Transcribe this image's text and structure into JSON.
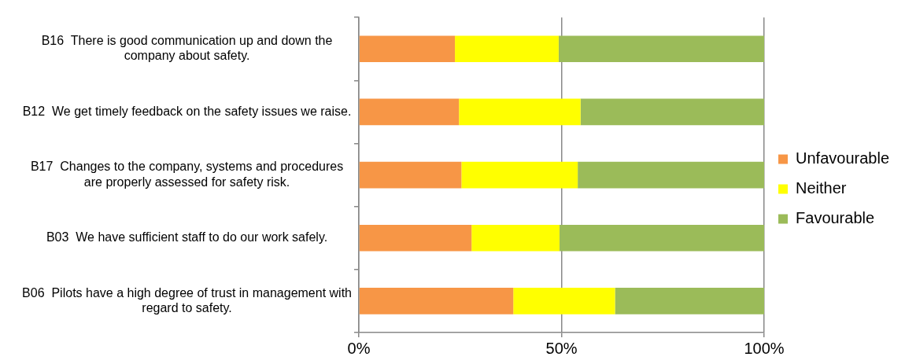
{
  "chart_data": {
    "type": "bar",
    "orientation": "horizontal",
    "stacked": true,
    "categories": [
      "B16  There is good communication up and down the company about safety.",
      "B12  We get timely feedback on the safety issues we raise.",
      "B17  Changes to the company, systems and procedures are properly assessed for safety risk.",
      "B03  We have sufficient staff to do our work safely.",
      "B06  Pilots have a high degree of trust in management with regard to safety."
    ],
    "series": [
      {
        "name": "Unfavourable",
        "color": "#f79646",
        "values": [
          23.7,
          24.7,
          25.3,
          27.8,
          38.1
        ]
      },
      {
        "name": "Neither",
        "color": "#ffff00",
        "values": [
          25.6,
          30.0,
          28.7,
          21.7,
          25.1
        ]
      },
      {
        "name": "Favourable",
        "color": "#9bbb59",
        "values": [
          50.7,
          45.3,
          46.0,
          50.5,
          36.8
        ]
      }
    ],
    "xlim": [
      0,
      100
    ],
    "xticks": [
      {
        "value": 0,
        "label": "0%"
      },
      {
        "value": 50,
        "label": "50%"
      },
      {
        "value": 100,
        "label": "100%"
      }
    ],
    "grid": "x",
    "legend": "right"
  }
}
